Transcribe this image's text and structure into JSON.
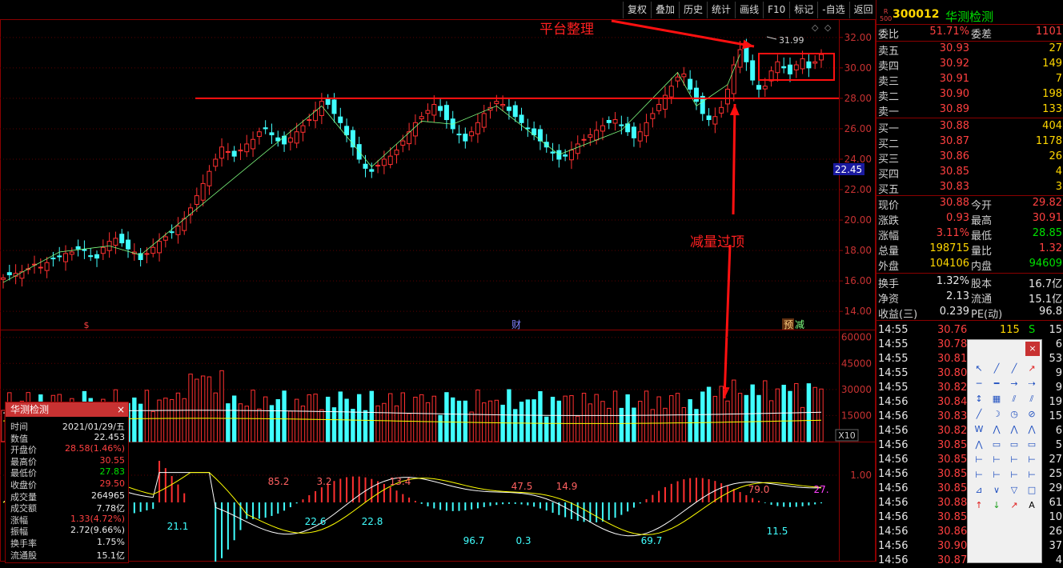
{
  "toolbar": [
    "复权",
    "叠加",
    "历史",
    "统计",
    "画线",
    "F10",
    "标记",
    "-自选",
    "返回"
  ],
  "stock": {
    "code": "300012",
    "name": "华测检测",
    "badge_top": "R",
    "badge_bottom": "500"
  },
  "order_book": {
    "weibi_label": "委比",
    "weibi": "51.71%",
    "weicha_label": "委差",
    "weicha": "1101",
    "asks": [
      {
        "label": "卖五",
        "price": "30.93",
        "vol": "27"
      },
      {
        "label": "卖四",
        "price": "30.92",
        "vol": "149"
      },
      {
        "label": "卖三",
        "price": "30.91",
        "vol": "7"
      },
      {
        "label": "卖二",
        "price": "30.90",
        "vol": "198"
      },
      {
        "label": "卖一",
        "price": "30.89",
        "vol": "133"
      }
    ],
    "bids": [
      {
        "label": "买一",
        "price": "30.88",
        "vol": "404"
      },
      {
        "label": "买二",
        "price": "30.87",
        "vol": "1178"
      },
      {
        "label": "买三",
        "price": "30.86",
        "vol": "26"
      },
      {
        "label": "买四",
        "price": "30.85",
        "vol": "4"
      },
      {
        "label": "买五",
        "price": "30.83",
        "vol": "3"
      }
    ]
  },
  "quote": [
    {
      "l1": "现价",
      "v1": "30.88",
      "c1": "red",
      "l2": "今开",
      "v2": "29.82",
      "c2": "red"
    },
    {
      "l1": "涨跌",
      "v1": "0.93",
      "c1": "red",
      "l2": "最高",
      "v2": "30.91",
      "c2": "red"
    },
    {
      "l1": "涨幅",
      "v1": "3.11%",
      "c1": "red",
      "l2": "最低",
      "v2": "28.85",
      "c2": "green"
    },
    {
      "l1": "总量",
      "v1": "198715",
      "c1": "yellow",
      "l2": "量比",
      "v2": "1.32",
      "c2": "red"
    },
    {
      "l1": "外盘",
      "v1": "104106",
      "c1": "yellow",
      "l2": "内盘",
      "v2": "94609",
      "c2": "green"
    }
  ],
  "fund": [
    {
      "l1": "换手",
      "v1": "1.32%",
      "l2": "股本",
      "v2": "16.7亿"
    },
    {
      "l1": "净资",
      "v1": "2.13",
      "l2": "流通",
      "v2": "15.1亿"
    },
    {
      "l1": "收益(三)",
      "v1": "0.239",
      "l2": "PE(动)",
      "v2": "96.8"
    }
  ],
  "ticks": [
    {
      "t": "14:55",
      "p": "30.76",
      "v": "115",
      "f": "S",
      "n": "15"
    },
    {
      "t": "14:55",
      "p": "30.78",
      "v": "",
      "f": "",
      "n": "6"
    },
    {
      "t": "14:55",
      "p": "30.81",
      "v": "",
      "f": "",
      "n": "53"
    },
    {
      "t": "14:55",
      "p": "30.80",
      "v": "",
      "f": "",
      "n": "9"
    },
    {
      "t": "14:55",
      "p": "30.82",
      "v": "",
      "f": "",
      "n": "9"
    },
    {
      "t": "14:56",
      "p": "30.84",
      "v": "",
      "f": "",
      "n": "19"
    },
    {
      "t": "14:56",
      "p": "30.83",
      "v": "",
      "f": "",
      "n": "15"
    },
    {
      "t": "14:56",
      "p": "30.82",
      "v": "",
      "f": "",
      "n": "6"
    },
    {
      "t": "14:56",
      "p": "30.85",
      "v": "",
      "f": "",
      "n": "5"
    },
    {
      "t": "14:56",
      "p": "30.85",
      "v": "",
      "f": "",
      "n": "27"
    },
    {
      "t": "14:56",
      "p": "30.85",
      "v": "",
      "f": "",
      "n": "25"
    },
    {
      "t": "14:56",
      "p": "30.85",
      "v": "",
      "f": "",
      "n": "29"
    },
    {
      "t": "14:56",
      "p": "30.88",
      "v": "",
      "f": "",
      "n": "61"
    },
    {
      "t": "14:56",
      "p": "30.85",
      "v": "",
      "f": "",
      "n": "10"
    },
    {
      "t": "14:56",
      "p": "30.86",
      "v": "",
      "f": "",
      "n": "26"
    },
    {
      "t": "14:56",
      "p": "30.90",
      "v": "",
      "f": "",
      "n": "37"
    },
    {
      "t": "14:56",
      "p": "30.87",
      "v": "",
      "f": "",
      "n": "4"
    }
  ],
  "infobox": {
    "title": "华测检测",
    "close": "×",
    "rows": [
      {
        "l": "时间",
        "v": "2021/01/29/五",
        "c": "white"
      },
      {
        "l": "数值",
        "v": "22.453",
        "c": "white"
      },
      {
        "l": "开盘价",
        "v": "28.58(1.46%)",
        "c": "red"
      },
      {
        "l": "最高价",
        "v": "30.55",
        "c": "red"
      },
      {
        "l": "最低价",
        "v": "27.83",
        "c": "green"
      },
      {
        "l": "收盘价",
        "v": "29.50",
        "c": "red"
      },
      {
        "l": "成交量",
        "v": "264965",
        "c": "white"
      },
      {
        "l": "成交额",
        "v": "7.78亿",
        "c": "white"
      },
      {
        "l": "涨幅",
        "v": "1.33(4.72%)",
        "c": "red"
      },
      {
        "l": "振幅",
        "v": "2.72(9.66%)",
        "c": "white"
      },
      {
        "l": "换手率",
        "v": "1.75%",
        "c": "white"
      },
      {
        "l": "流通股",
        "v": "15.1亿",
        "c": "white"
      }
    ]
  },
  "annotations": {
    "platform": "平台整理",
    "volume": "减量过顶"
  },
  "markers": {
    "s": "$",
    "cai": "财",
    "yu": "预",
    "jian": "减"
  },
  "price_label": "22.45",
  "colors": {
    "up": "#ff3030",
    "down": "#40ffff",
    "ma": "#ffff00",
    "border": "#8b0000"
  },
  "chart_data": [
    {
      "type": "candlestick",
      "title": "",
      "y_axis_ticks": [
        "32.00",
        "30.00",
        "28.00",
        "26.00",
        "24.00",
        "22.00",
        "20.00",
        "18.00",
        "16.00",
        "14.00"
      ],
      "ylim": [
        12.8,
        33.2
      ],
      "peak_label": "31.99",
      "resistance_level": 28.0,
      "close_series": [
        16.2,
        16.4,
        16.5,
        16.6,
        16.8,
        17.1,
        16.9,
        17.2,
        17.5,
        17.6,
        17.8,
        17.9,
        18.1,
        18.0,
        17.6,
        17.5,
        18.2,
        18.6,
        18.8,
        18.5,
        18.1,
        17.9,
        17.4,
        17.8,
        18.2,
        18.6,
        18.9,
        19.2,
        19.6,
        20.1,
        20.8,
        21.6,
        22.4,
        23.2,
        24.0,
        24.8,
        24.5,
        24.2,
        24.6,
        25.0,
        25.3,
        25.8,
        26.0,
        25.6,
        25.2,
        25.0,
        25.4,
        25.8,
        26.2,
        26.6,
        27.2,
        27.8,
        27.6,
        27.0,
        26.4,
        25.6,
        24.8,
        24.0,
        23.4,
        23.2,
        23.6,
        24.0,
        24.2,
        24.6,
        25.2,
        25.8,
        26.4,
        26.8,
        27.2,
        27.6,
        27.2,
        26.6,
        26.0,
        25.6,
        25.2,
        25.8,
        26.4,
        27.0,
        27.4,
        27.8,
        27.6,
        27.2,
        26.8,
        26.4,
        26.0,
        25.6,
        25.2,
        24.8,
        24.4,
        24.0,
        24.2,
        24.6,
        25.0,
        25.3,
        25.6,
        25.9,
        26.2,
        26.4,
        26.6,
        26.2,
        25.8,
        25.4,
        25.8,
        26.4,
        27.0,
        27.6,
        28.2,
        28.8,
        29.4,
        29.6,
        28.6,
        27.8,
        27.0,
        26.6,
        26.8,
        27.4,
        28.6,
        30.2,
        31.2,
        30.4,
        29.2,
        28.6,
        28.8,
        29.8,
        30.4,
        30.0,
        29.6,
        30.2,
        30.6,
        30.0,
        30.4,
        30.88
      ]
    },
    {
      "type": "bar",
      "title": "",
      "y_axis_ticks": [
        "60000",
        "45000",
        "30000",
        "15000"
      ],
      "ylim": [
        0,
        64000
      ],
      "scale_label": "X10"
    },
    {
      "type": "line",
      "title": "",
      "y_axis_ticks": [
        "1.00"
      ],
      "value_labels": [
        "85.2",
        "3.2",
        "13.4",
        "47.5",
        "14.9",
        "79.0",
        "27.",
        "21.1",
        "22.6",
        "22.8",
        "96.7",
        "0.3",
        "69.7",
        "11.5"
      ]
    }
  ]
}
